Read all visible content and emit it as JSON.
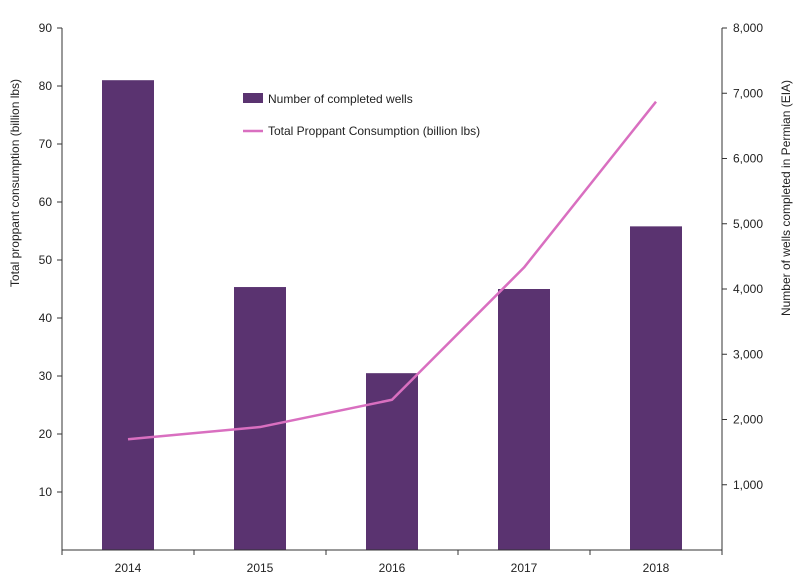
{
  "chart_data": {
    "type": "bar",
    "categories": [
      "2014",
      "2015",
      "2016",
      "2017",
      "2018"
    ],
    "series": [
      {
        "name": "Number of completed wells",
        "type": "bar",
        "axis": "right",
        "values": [
          7200,
          4030,
          2710,
          4000,
          4960
        ],
        "color": "#5a3370"
      },
      {
        "name": "Total Proppant Consumption (billion lbs)",
        "type": "line",
        "axis": "left",
        "values": [
          19.1,
          21.2,
          25.9,
          48.7,
          77.3
        ],
        "color": "#d96fc0"
      }
    ],
    "y_left": {
      "label": "Total proppant consumption (billion lbs)",
      "min": 0,
      "max": 90,
      "ticks": [
        "10",
        "20",
        "30",
        "40",
        "50",
        "60",
        "70",
        "80",
        "90"
      ]
    },
    "y_right": {
      "label": "Number of wells completed in Permian (EIA)",
      "min": 0,
      "max": 8000,
      "ticks": [
        "1,000",
        "2,000",
        "3,000",
        "4,000",
        "5,000",
        "6,000",
        "7,000",
        "8,000"
      ]
    },
    "legend": [
      "Number of completed wells",
      "Total Proppant Consumption (billion lbs)"
    ],
    "legend_position": "top-center"
  }
}
